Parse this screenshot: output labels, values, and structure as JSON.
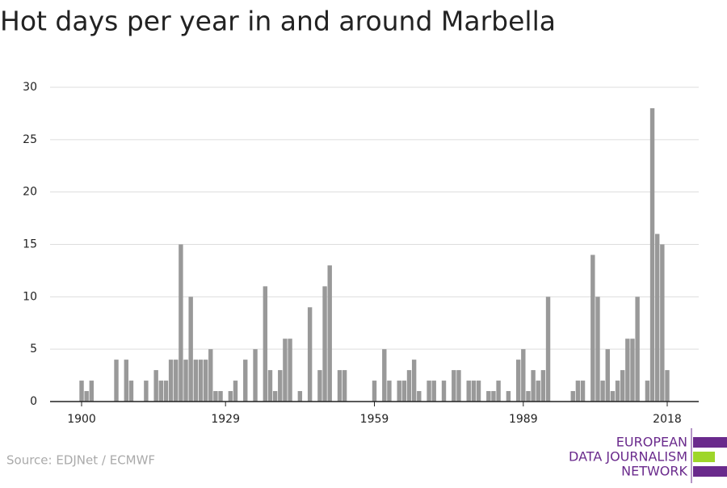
{
  "chart_data": {
    "type": "bar",
    "title": "Hot days per year in and around Marbella",
    "source": "Source: EDJNet / ECMWF",
    "logo": [
      "EUROPEAN",
      "DATA JOURNALISM",
      "NETWORK"
    ],
    "color": "#999999",
    "grid": true,
    "x": [
      1900,
      1901,
      1902,
      1903,
      1904,
      1905,
      1906,
      1907,
      1908,
      1909,
      1910,
      1911,
      1912,
      1913,
      1914,
      1915,
      1916,
      1917,
      1918,
      1919,
      1920,
      1921,
      1922,
      1923,
      1924,
      1925,
      1926,
      1927,
      1928,
      1929,
      1930,
      1931,
      1932,
      1933,
      1934,
      1935,
      1936,
      1937,
      1938,
      1939,
      1940,
      1941,
      1942,
      1943,
      1944,
      1945,
      1946,
      1947,
      1948,
      1949,
      1950,
      1951,
      1952,
      1953,
      1954,
      1955,
      1956,
      1957,
      1958,
      1959,
      1960,
      1961,
      1962,
      1963,
      1964,
      1965,
      1966,
      1967,
      1968,
      1969,
      1970,
      1971,
      1972,
      1973,
      1974,
      1975,
      1976,
      1977,
      1978,
      1979,
      1980,
      1981,
      1982,
      1983,
      1984,
      1985,
      1986,
      1987,
      1988,
      1989,
      1990,
      1991,
      1992,
      1993,
      1994,
      1995,
      1996,
      1997,
      1998,
      1999,
      2000,
      2001,
      2002,
      2003,
      2004,
      2005,
      2006,
      2007,
      2008,
      2009,
      2010,
      2011,
      2012,
      2013,
      2014,
      2015,
      2016,
      2017,
      2018
    ],
    "values": [
      2,
      1,
      2,
      0,
      0,
      0,
      0,
      4,
      0,
      4,
      2,
      0,
      0,
      2,
      0,
      3,
      2,
      2,
      4,
      4,
      15,
      4,
      10,
      4,
      4,
      4,
      5,
      1,
      1,
      0,
      1,
      2,
      0,
      4,
      0,
      5,
      0,
      11,
      3,
      1,
      3,
      6,
      6,
      0,
      1,
      0,
      9,
      0,
      3,
      11,
      13,
      0,
      3,
      3,
      0,
      0,
      0,
      0,
      0,
      2,
      0,
      5,
      2,
      0,
      2,
      2,
      3,
      4,
      1,
      0,
      2,
      2,
      0,
      2,
      0,
      3,
      3,
      0,
      2,
      2,
      2,
      0,
      1,
      1,
      2,
      0,
      1,
      0,
      4,
      5,
      1,
      3,
      2,
      3,
      10,
      0,
      0,
      0,
      0,
      1,
      2,
      2,
      0,
      14,
      10,
      2,
      5,
      1,
      2,
      3,
      6,
      6,
      10,
      0,
      2,
      28,
      16,
      15,
      3
    ],
    "xlim": [
      1893.65,
      2024.35
    ],
    "xticks": [
      1900,
      1929,
      1959,
      1989,
      2018
    ],
    "ylim": [
      0,
      30
    ],
    "yticks": [
      0,
      5,
      10,
      15,
      20,
      25,
      30
    ]
  }
}
